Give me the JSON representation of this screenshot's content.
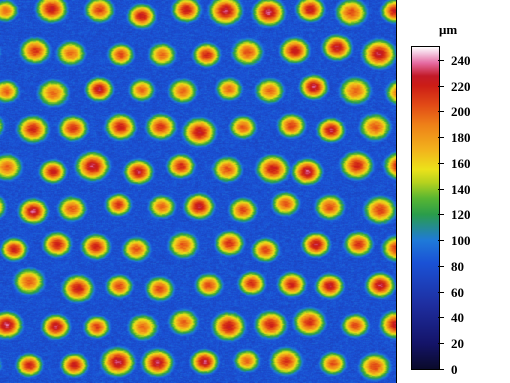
{
  "image": {
    "description_icon": "surface-height-map"
  },
  "colorbar": {
    "unit": "μm",
    "ticks": [
      "0",
      "20",
      "40",
      "60",
      "80",
      "100",
      "120",
      "140",
      "160",
      "180",
      "200",
      "220",
      "240"
    ],
    "min": 0,
    "max": 250
  }
}
